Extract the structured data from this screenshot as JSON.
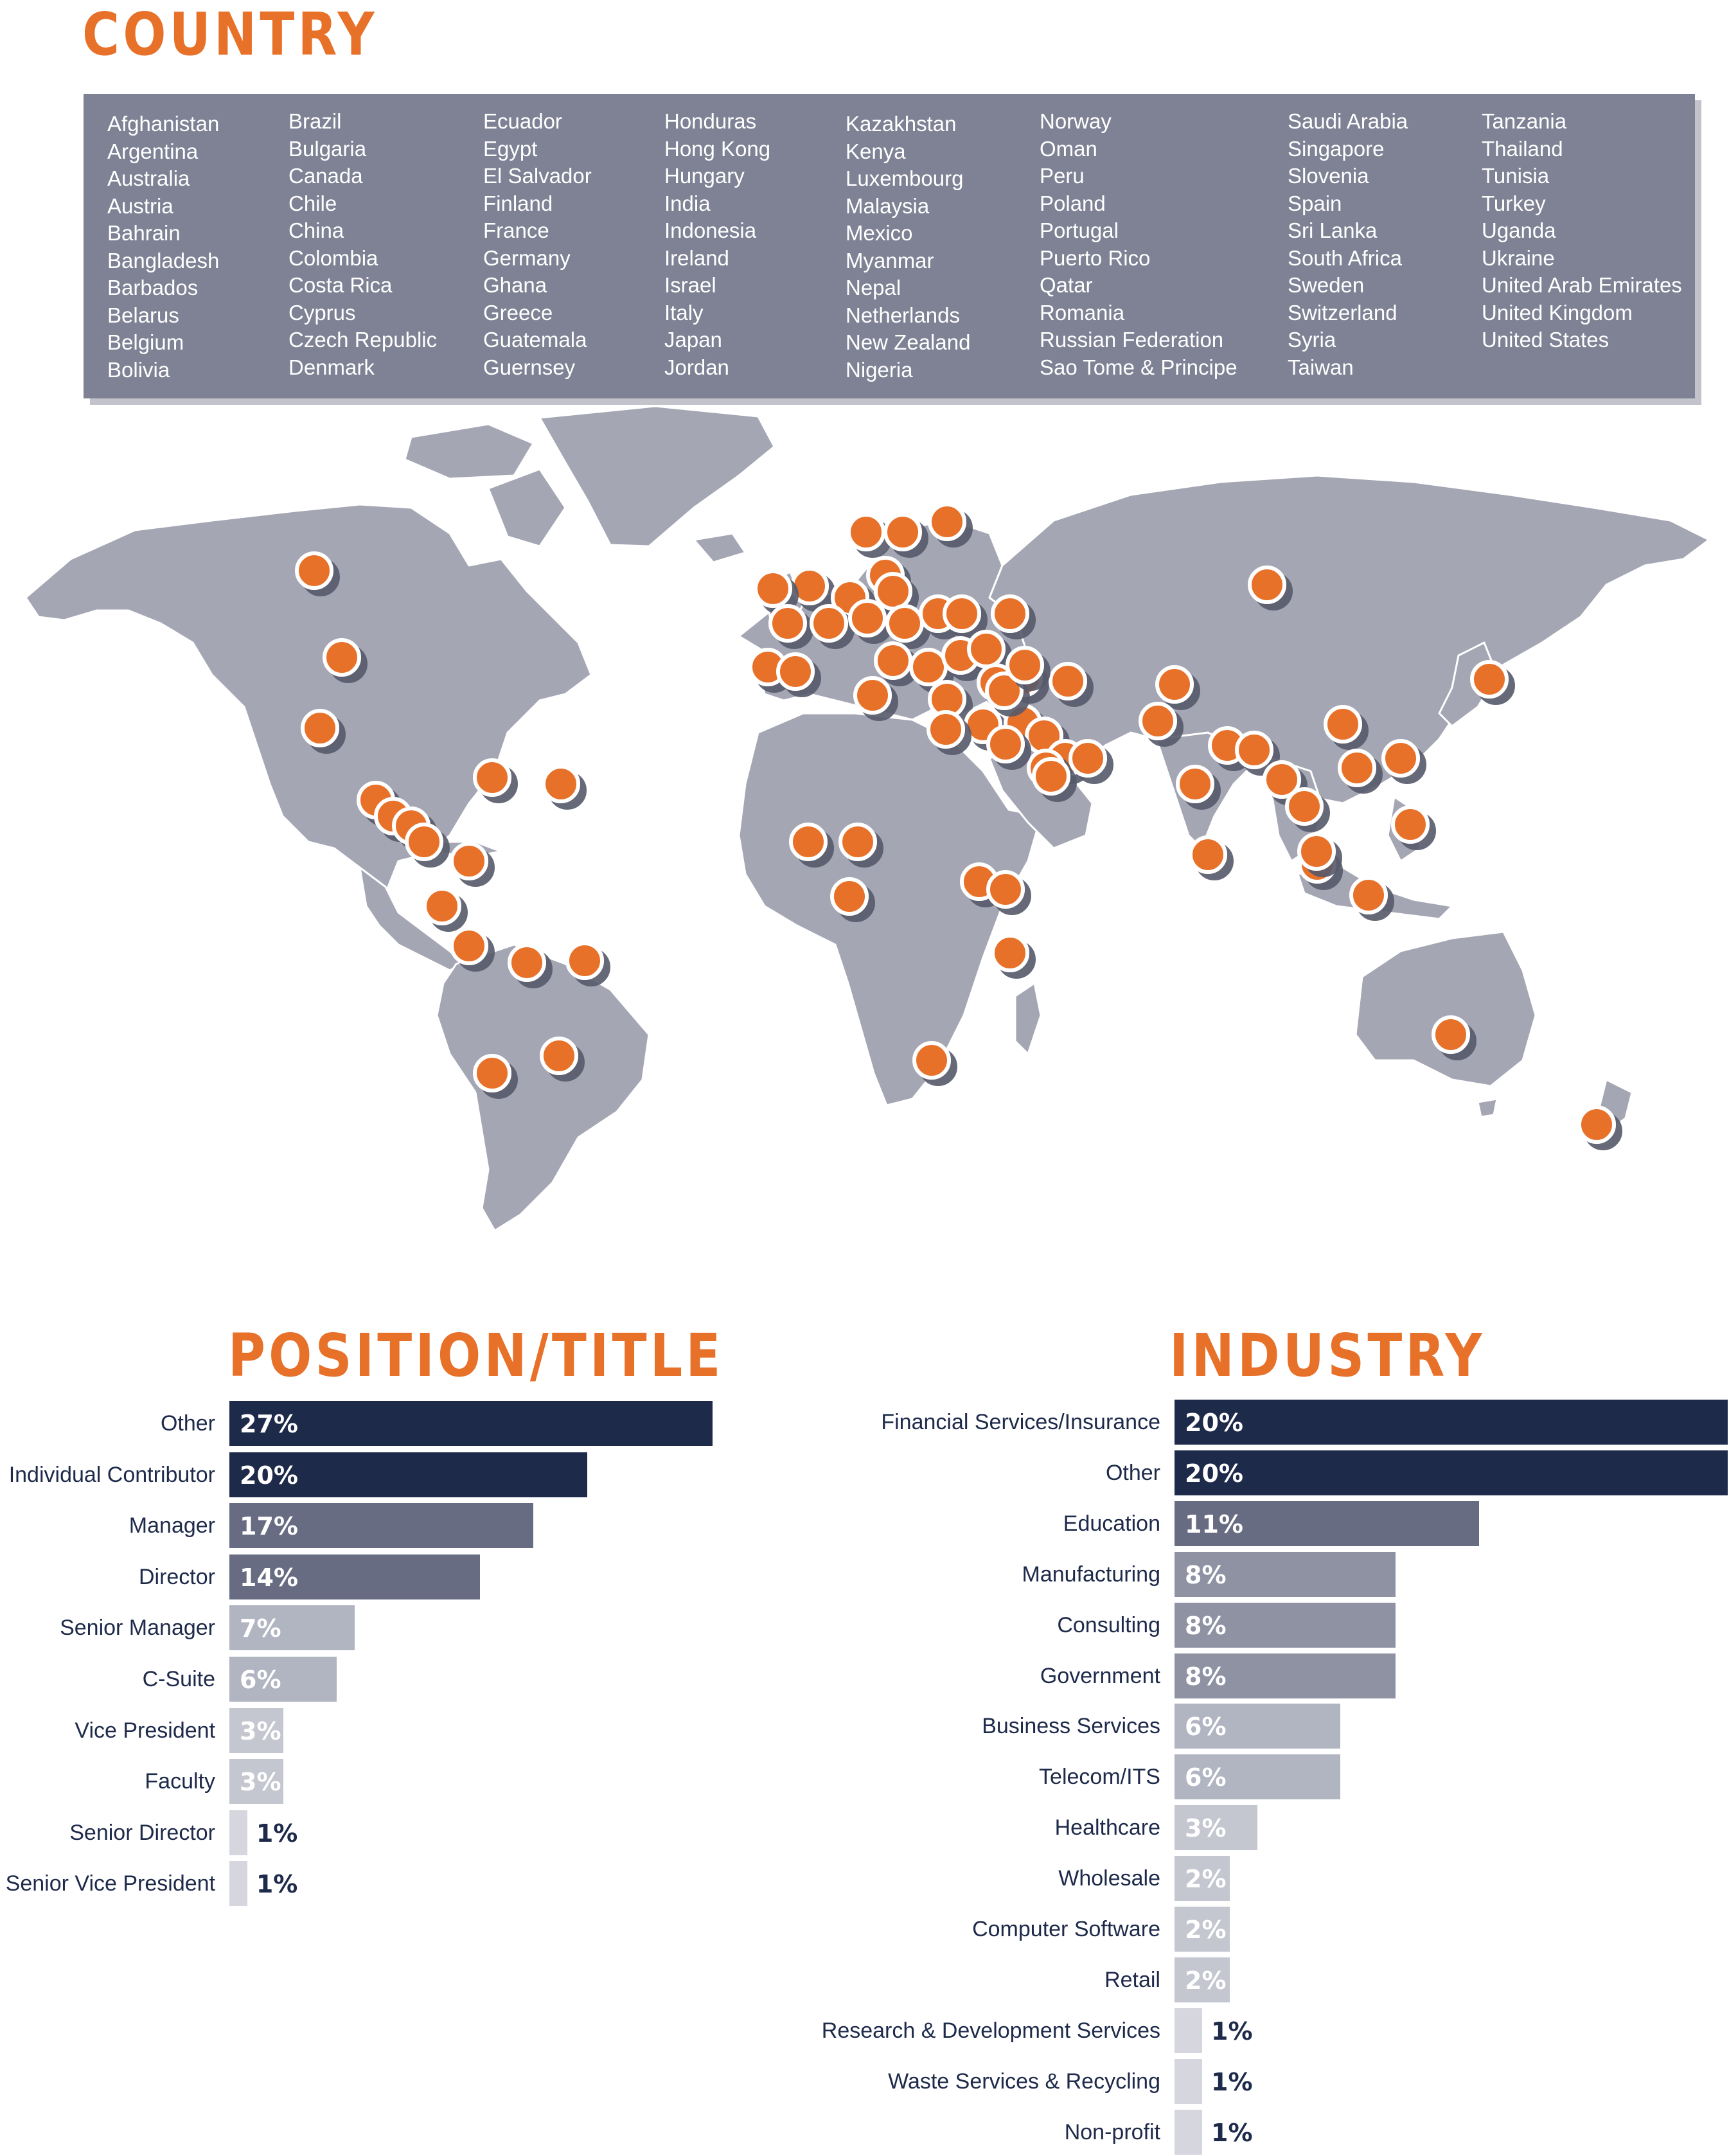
{
  "country": {
    "title": "COUNTRY",
    "columns": [
      [
        "Afghanistan",
        "Argentina",
        "Australia",
        "Austria",
        "Bahrain",
        "Bangladesh",
        "Barbados",
        "Belarus",
        "Belgium",
        "Bolivia"
      ],
      [
        "Brazil",
        "Bulgaria",
        "Canada",
        "Chile",
        "China",
        "Colombia",
        "Costa Rica",
        "Cyprus",
        "Czech Republic",
        "Denmark"
      ],
      [
        "Ecuador",
        "Egypt",
        "El Salvador",
        "Finland",
        "France",
        "Germany",
        "Ghana",
        "Greece",
        "Guatemala",
        "Guernsey"
      ],
      [
        "Honduras",
        "Hong Kong",
        "Hungary",
        "India",
        "Indonesia",
        "Ireland",
        "Israel",
        "Italy",
        "Japan",
        "Jordan"
      ],
      [
        "Kazakhstan",
        "Kenya",
        "Luxembourg",
        "Malaysia",
        "Mexico",
        "Myanmar",
        "Nepal",
        "Netherlands",
        "New Zealand",
        "Nigeria"
      ],
      [
        "Norway",
        "Oman",
        "Peru",
        "Poland",
        "Portugal",
        "Puerto Rico",
        "Qatar",
        "Romania",
        "Russian Federation",
        "Sao Tome & Principe"
      ],
      [
        "Saudi Arabia",
        "Singapore",
        "Slovenia",
        "Spain",
        "Sri Lanka",
        "South Africa",
        "Sweden",
        "Switzerland",
        "Syria",
        "Taiwan"
      ],
      [
        "Tanzania",
        "Thailand",
        "Tunisia",
        "Turkey",
        "Uganda",
        "Ukraine",
        "United Arab Emirates",
        "United Kingdom",
        "United States"
      ]
    ]
  },
  "colors": {
    "accent": "#e8712a",
    "land": "#a4a6b4",
    "country_box": "#7e8294",
    "navy": "#1e2a4a",
    "tier_colors": [
      "#1e2a4a",
      "#676c82",
      "#8e92a3",
      "#b1b4c1",
      "#c4c6d0",
      "#d5d6de"
    ]
  },
  "chart_data": [
    {
      "type": "bar",
      "orientation": "horizontal",
      "title": "POSITION/TITLE",
      "categories": [
        "Other",
        "Individual Contributor",
        "Manager",
        "Director",
        "Senior Manager",
        "C-Suite",
        "Vice President",
        "Faculty",
        "Senior Director",
        "Senior Vice President"
      ],
      "values": [
        27,
        20,
        17,
        14,
        7,
        6,
        3,
        3,
        1,
        1
      ],
      "value_labels": [
        "27%",
        "20%",
        "17%",
        "14%",
        "7%",
        "6%",
        "3%",
        "3%",
        "1%",
        "1%"
      ],
      "unit": "%",
      "xlim": [
        0,
        27
      ]
    },
    {
      "type": "bar",
      "orientation": "horizontal",
      "title": "INDUSTRY",
      "categories": [
        "Financial Services/Insurance",
        "Other",
        "Education",
        "Manufacturing",
        "Consulting",
        "Government",
        "Business Services",
        "Telecom/ITS",
        "Healthcare",
        "Wholesale",
        "Computer Software",
        "Retail",
        "Research & Development Services",
        "Waste Services & Recycling",
        "Non-profit"
      ],
      "values": [
        20,
        20,
        11,
        8,
        8,
        8,
        6,
        6,
        3,
        2,
        2,
        2,
        1,
        1,
        1
      ],
      "value_labels": [
        "20%",
        "20%",
        "11%",
        "8%",
        "8%",
        "8%",
        "6%",
        "6%",
        "3%",
        "2%",
        "2%",
        "2%",
        "1%",
        "1%",
        "1%"
      ],
      "unit": "%",
      "xlim": [
        0,
        20
      ]
    }
  ]
}
